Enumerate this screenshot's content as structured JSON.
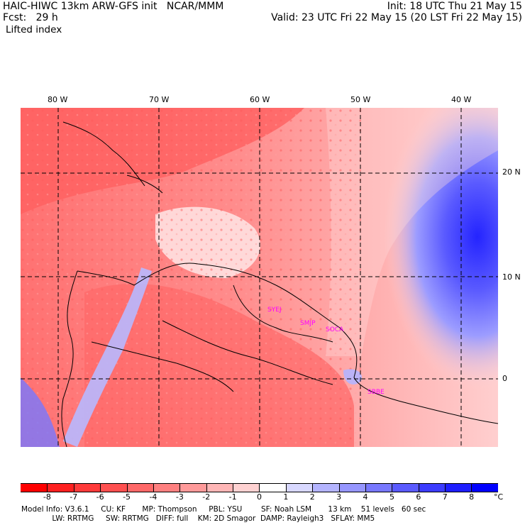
{
  "header": {
    "model_line": "HAIC-HIWC 13km ARW-GFS init   NCAR/MMM",
    "init_line": "Init: 18 UTC Thu 21 May 15",
    "fcst_line": "Fcst:   29 h",
    "valid_line": "Valid: 23 UTC Fri 22 May 15 (20 LST Fri 22 May 15)",
    "field": "Lifted index"
  },
  "map": {
    "lon_labels": [
      "80 W",
      "70 W",
      "60 W",
      "50 W",
      "40 W"
    ],
    "lat_labels": [
      "20 N",
      "10 N",
      "0"
    ],
    "sites": [
      "SYEJ",
      "SMJP",
      "SOCA",
      "SBBE"
    ]
  },
  "colorbar": {
    "unit": "°C",
    "tick_labels": [
      "-8",
      "-7",
      "-6",
      "-5",
      "-4",
      "-3",
      "-2",
      "-1",
      "0",
      "1",
      "2",
      "3",
      "4",
      "5",
      "6",
      "7",
      "8"
    ],
    "colors": [
      "#ff0000",
      "#ff2020",
      "#ff3a3a",
      "#ff5050",
      "#ff6868",
      "#ff8080",
      "#ff9a9a",
      "#ffb6b6",
      "#ffd2d2",
      "#ffffff",
      "#d8d8ff",
      "#b4b4ff",
      "#9696ff",
      "#7878ff",
      "#5a5aff",
      "#3c3cff",
      "#1e1eff",
      "#0000ff"
    ]
  },
  "footer": {
    "line1": "Model Info: V3.6.1     CU: KF       MP: Thompson     PBL: YSU        SF: Noah LSM       13 km    51 levels   60 sec",
    "line2": "             LW: RRTMG     SW: RRTMG   DIFF: full    KM: 2D Smagor  DAMP: Rayleigh3   SFLAY: MM5"
  }
}
